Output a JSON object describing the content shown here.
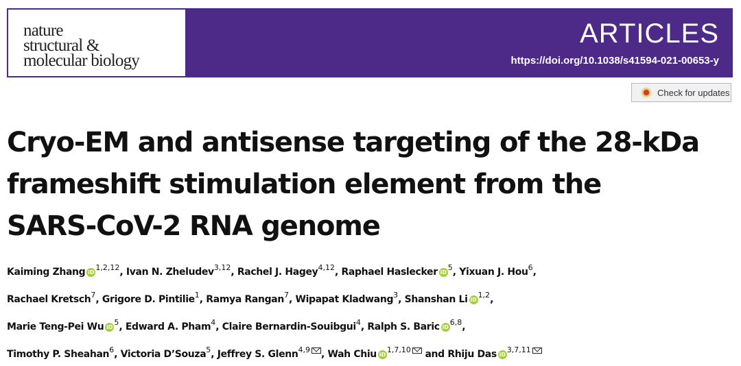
{
  "header": {
    "journal_lines": [
      "nature",
      "structural &",
      "molecular biology"
    ],
    "section_label": "ARTICLES",
    "doi": "https://doi.org/10.1038/s41594-021-00653-y",
    "brand_color": "#4d2a88"
  },
  "check_updates": {
    "label": "Check for updates",
    "icon": "check-updates-icon"
  },
  "title_lines": [
    "Cryo-EM and antisense targeting of the 28-kDa",
    "frameshift stimulation element from the",
    "SARS-CoV-2 RNA genome"
  ],
  "author_lines": [
    [
      {
        "name": "Kaiming Zhang",
        "orcid": true,
        "sup": "1,2,12",
        "email": false,
        "sep": ", "
      },
      {
        "name": "Ivan N. Zheludev",
        "orcid": false,
        "sup": "3,12",
        "email": false,
        "sep": ", "
      },
      {
        "name": "Rachel J. Hagey",
        "orcid": false,
        "sup": "4,12",
        "email": false,
        "sep": ", "
      },
      {
        "name": "Raphael Haslecker",
        "orcid": true,
        "sup": "5",
        "email": false,
        "sep": ", "
      },
      {
        "name": "Yixuan J. Hou",
        "orcid": false,
        "sup": "6",
        "email": false,
        "sep": ","
      }
    ],
    [
      {
        "name": "Rachael Kretsch",
        "orcid": false,
        "sup": "7",
        "email": false,
        "sep": ", "
      },
      {
        "name": "Grigore D. Pintilie",
        "orcid": false,
        "sup": "1",
        "email": false,
        "sep": ", "
      },
      {
        "name": "Ramya Rangan",
        "orcid": false,
        "sup": "7",
        "email": false,
        "sep": ", "
      },
      {
        "name": "Wipapat Kladwang",
        "orcid": false,
        "sup": "3",
        "email": false,
        "sep": ", "
      },
      {
        "name": "Shanshan Li",
        "orcid": true,
        "sup": "1,2",
        "email": false,
        "sep": ","
      }
    ],
    [
      {
        "name": "Marie Teng-Pei Wu",
        "orcid": true,
        "sup": "5",
        "email": false,
        "sep": ", "
      },
      {
        "name": "Edward A. Pham",
        "orcid": false,
        "sup": "4",
        "email": false,
        "sep": ", "
      },
      {
        "name": "Claire Bernardin-Souibgui",
        "orcid": false,
        "sup": "4",
        "email": false,
        "sep": ", "
      },
      {
        "name": "Ralph S. Baric",
        "orcid": true,
        "sup": "6,8",
        "email": false,
        "sep": ","
      }
    ],
    [
      {
        "name": "Timothy P. Sheahan",
        "orcid": false,
        "sup": "6",
        "email": false,
        "sep": ", "
      },
      {
        "name": "Victoria D’Souza",
        "orcid": false,
        "sup": "5",
        "email": false,
        "sep": ", "
      },
      {
        "name": "Jeffrey S. Glenn",
        "orcid": false,
        "sup": "4,9",
        "email": true,
        "sep": ", "
      },
      {
        "name": "Wah Chiu",
        "orcid": true,
        "sup": "1,7,10",
        "email": true,
        "sep": " and "
      },
      {
        "name": "Rhiju Das",
        "orcid": true,
        "sup": "3,7,11",
        "email": true,
        "sep": ""
      }
    ]
  ],
  "orcid_icon": {
    "label": "iD",
    "color": "#a6ce39"
  }
}
